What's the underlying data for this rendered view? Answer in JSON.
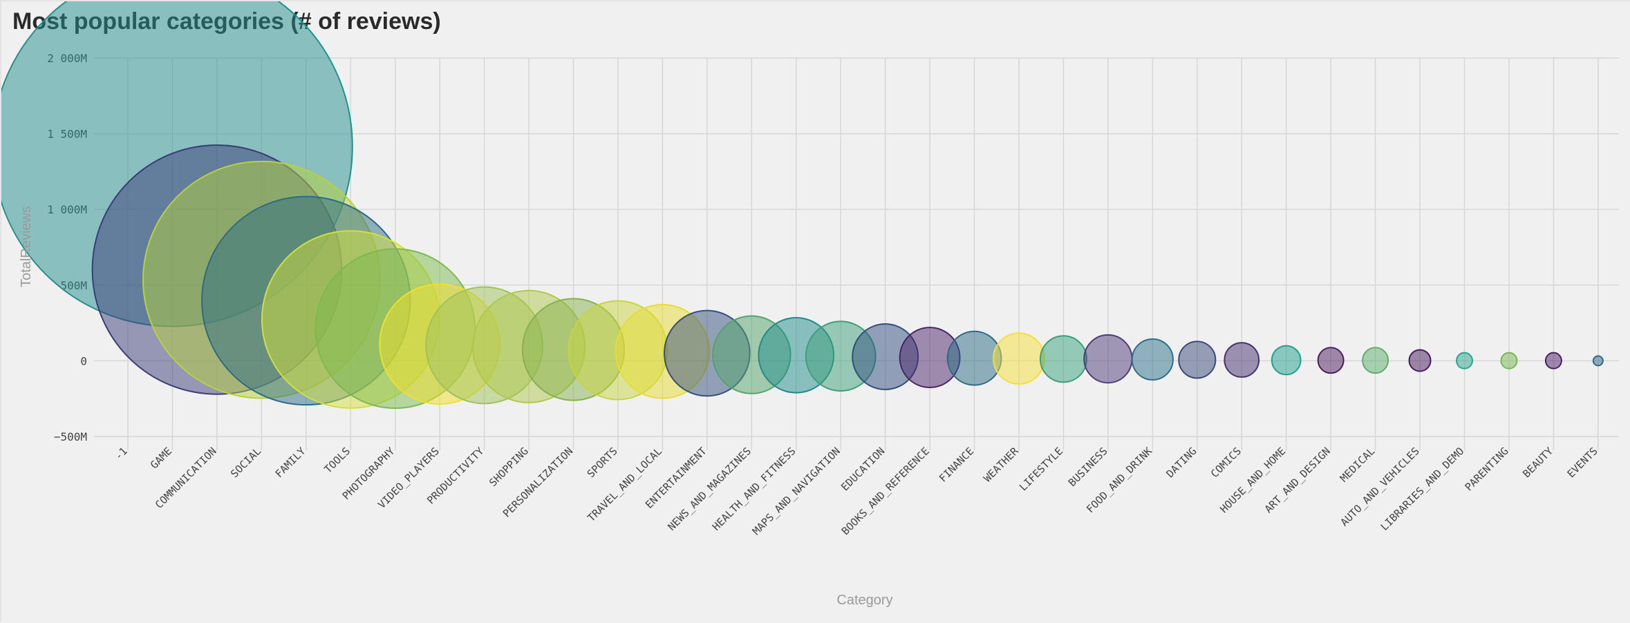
{
  "chart_data": {
    "type": "scatter",
    "title": "Most popular categories (# of reviews)",
    "xlabel": "Category",
    "ylabel": "TotalReviews",
    "ylim": [
      -500,
      2000
    ],
    "yunit": "M",
    "yticks": [
      -500,
      0,
      500,
      1000,
      1500,
      2000
    ],
    "ytick_labels": [
      "−500M",
      "0",
      "500M",
      "1 000M",
      "1 500M",
      "2 000M"
    ],
    "grid": true,
    "categories": [
      "-1",
      "GAME",
      "COMMUNICATION",
      "SOCIAL",
      "FAMILY",
      "TOOLS",
      "PHOTOGRAPHY",
      "VIDEO_PLAYERS",
      "PRODUCTIVITY",
      "SHOPPING",
      "PERSONALIZATION",
      "SPORTS",
      "TRAVEL_AND_LOCAL",
      "ENTERTAINMENT",
      "NEWS_AND_MAGAZINES",
      "HEALTH_AND_FITNESS",
      "MAPS_AND_NAVIGATION",
      "EDUCATION",
      "BOOKS_AND_REFERENCE",
      "FINANCE",
      "WEATHER",
      "LIFESTYLE",
      "BUSINESS",
      "FOOD_AND_DRINK",
      "DATING",
      "COMICS",
      "HOUSE_AND_HOME",
      "ART_AND_DESIGN",
      "MEDICAL",
      "AUTO_AND_VEHICLES",
      "LIBRARIES_AND_DEMO",
      "PARENTING",
      "BEAUTY",
      "EVENTS"
    ],
    "points": [
      {
        "category": "GAME",
        "value": 1415,
        "color": "#21908d"
      },
      {
        "category": "COMMUNICATION",
        "value": 602,
        "color": "#3b3b7a"
      },
      {
        "category": "SOCIAL",
        "value": 535,
        "color": "#b8d23a"
      },
      {
        "category": "FAMILY",
        "value": 397,
        "color": "#2c6b88"
      },
      {
        "category": "TOOLS",
        "value": 273,
        "color": "#d4e03a"
      },
      {
        "category": "PHOTOGRAPHY",
        "value": 213,
        "color": "#7cba4e"
      },
      {
        "category": "VIDEO_PLAYERS",
        "value": 110,
        "color": "#f2e02a"
      },
      {
        "category": "PRODUCTIVITY",
        "value": 103,
        "color": "#9fc25c"
      },
      {
        "category": "SHOPPING",
        "value": 94,
        "color": "#b0c84a"
      },
      {
        "category": "PERSONALIZATION",
        "value": 75,
        "color": "#86b24e"
      },
      {
        "category": "SPORTS",
        "value": 70,
        "color": "#c8d43e"
      },
      {
        "category": "TRAVEL_AND_LOCAL",
        "value": 62,
        "color": "#e8dc34"
      },
      {
        "category": "ENTERTAINMENT",
        "value": 50,
        "color": "#344f7e"
      },
      {
        "category": "NEWS_AND_MAGAZINES",
        "value": 40,
        "color": "#52a46a"
      },
      {
        "category": "HEALTH_AND_FITNESS",
        "value": 37,
        "color": "#1f8b8a"
      },
      {
        "category": "MAPS_AND_NAVIGATION",
        "value": 31,
        "color": "#3da07a"
      },
      {
        "category": "EDUCATION",
        "value": 27,
        "color": "#2f4e7e"
      },
      {
        "category": "BOOKS_AND_REFERENCE",
        "value": 22,
        "color": "#4a2468"
      },
      {
        "category": "FINANCE",
        "value": 17,
        "color": "#2a6a86"
      },
      {
        "category": "WEATHER",
        "value": 15,
        "color": "#f4e03a"
      },
      {
        "category": "LIFESTYLE",
        "value": 12,
        "color": "#38a07e"
      },
      {
        "category": "BUSINESS",
        "value": 13,
        "color": "#4e3b7a"
      },
      {
        "category": "FOOD_AND_DRINK",
        "value": 9,
        "color": "#2e708a"
      },
      {
        "category": "DATING",
        "value": 7,
        "color": "#3a4a7a"
      },
      {
        "category": "COMICS",
        "value": 6,
        "color": "#46306e"
      },
      {
        "category": "HOUSE_AND_HOME",
        "value": 4,
        "color": "#22a08e"
      },
      {
        "category": "ART_AND_DESIGN",
        "value": 3,
        "color": "#4a1c5e"
      },
      {
        "category": "MEDICAL",
        "value": 3,
        "color": "#5cae6c"
      },
      {
        "category": "AUTO_AND_VEHICLES",
        "value": 2,
        "color": "#461a5e"
      },
      {
        "category": "LIBRARIES_AND_DEMO",
        "value": 1,
        "color": "#2aa690"
      },
      {
        "category": "PARENTING",
        "value": 1,
        "color": "#78b852"
      },
      {
        "category": "BEAUTY",
        "value": 1,
        "color": "#4c1e66"
      },
      {
        "category": "EVENTS",
        "value": 0.2,
        "color": "#2f6a8c"
      }
    ]
  }
}
